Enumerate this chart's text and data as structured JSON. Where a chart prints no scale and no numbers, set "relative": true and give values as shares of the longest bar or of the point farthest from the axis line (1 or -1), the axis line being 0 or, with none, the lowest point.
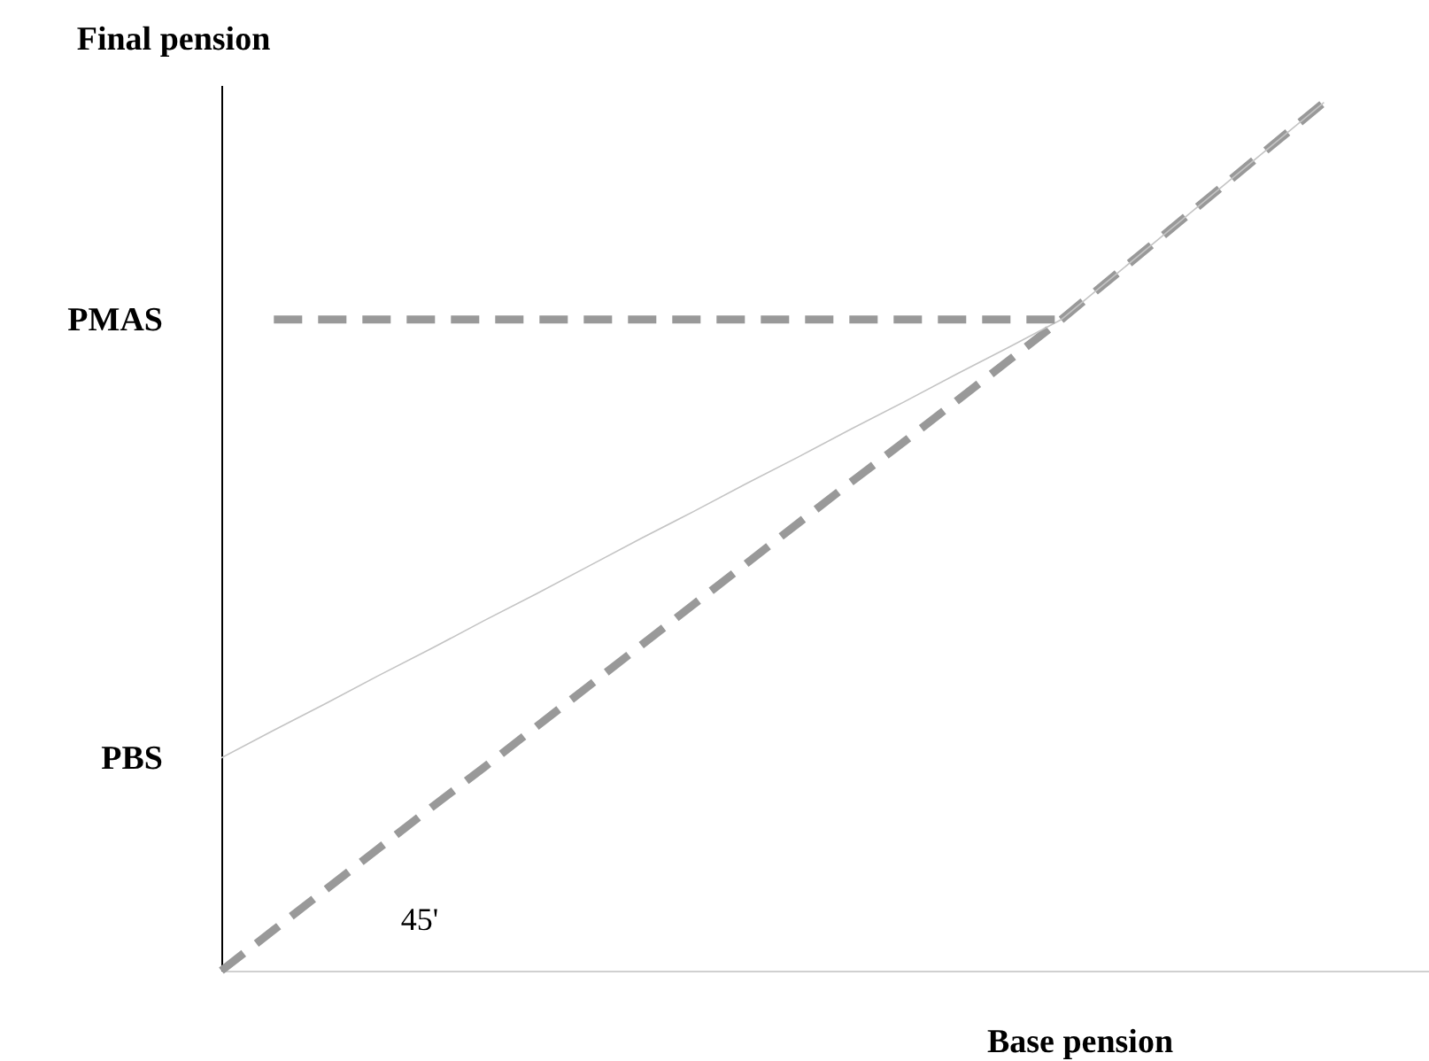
{
  "chart_data": {
    "type": "line",
    "relative": true,
    "xlabel": "Base pension",
    "ylabel": "Final pension",
    "categories": [
      null,
      null,
      null,
      null,
      null,
      null,
      null,
      null,
      null,
      null,
      null,
      null,
      null,
      null,
      null,
      null,
      null,
      null,
      null,
      null,
      null,
      null,
      null
    ],
    "series": [
      {
        "line_style": "dashed",
        "color": "#999999",
        "values": [
          0,
          0.047,
          0.094,
          0.141,
          0.188,
          0.234,
          0.281,
          0.328,
          0.375,
          0.422,
          0.469,
          0.516,
          0.563,
          0.609,
          0.656,
          0.703,
          0.75,
          0.8,
          0.85,
          0.9,
          0.95,
          1,
          null
        ]
      },
      {
        "line_style": "solid",
        "color": "#c4c4c4",
        "values": [
          0.245,
          0.277,
          0.308,
          0.34,
          0.371,
          0.403,
          0.434,
          0.466,
          0.498,
          0.529,
          0.561,
          0.592,
          0.624,
          0.655,
          0.687,
          0.718,
          0.75,
          0.8,
          0.85,
          0.9,
          0.95,
          1,
          null
        ]
      },
      {
        "line_style": "dashed",
        "color": "#999999",
        "values": [
          null,
          0.75,
          0.75,
          0.75,
          0.75,
          0.75,
          0.75,
          0.75,
          0.75,
          0.75,
          0.75,
          0.75,
          0.75,
          0.75,
          0.75,
          0.75,
          0.75,
          null,
          null,
          null,
          null,
          null,
          null
        ]
      }
    ],
    "annotations": [
      "PMAS",
      "PBS",
      "45'"
    ]
  }
}
